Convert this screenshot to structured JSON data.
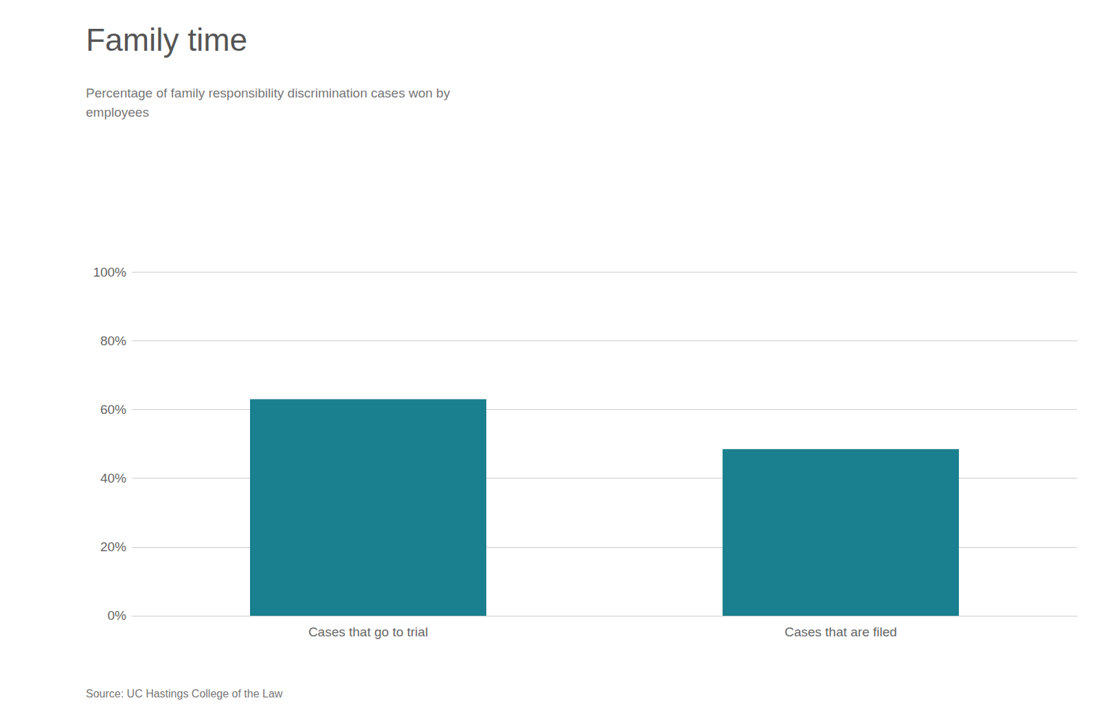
{
  "chart_data": {
    "type": "bar",
    "title": "Family time",
    "subtitle": "Percentage of family responsibility discrimination cases won by\nemployees",
    "source": "Source: UC Hastings College of the Law",
    "categories": [
      "Cases that go to trial",
      "Cases that are filed"
    ],
    "values": [
      0.63,
      0.485
    ],
    "color": "#1a7f8e",
    "ylim": [
      0,
      1.0
    ],
    "yticks": [
      {
        "value": 0.0,
        "label": "0%"
      },
      {
        "value": 0.2,
        "label": "20%"
      },
      {
        "value": 0.4,
        "label": "40%"
      },
      {
        "value": 0.6,
        "label": "60%"
      },
      {
        "value": 0.8,
        "label": "80%"
      },
      {
        "value": 1.0,
        "label": "100%"
      }
    ],
    "grid": true
  }
}
